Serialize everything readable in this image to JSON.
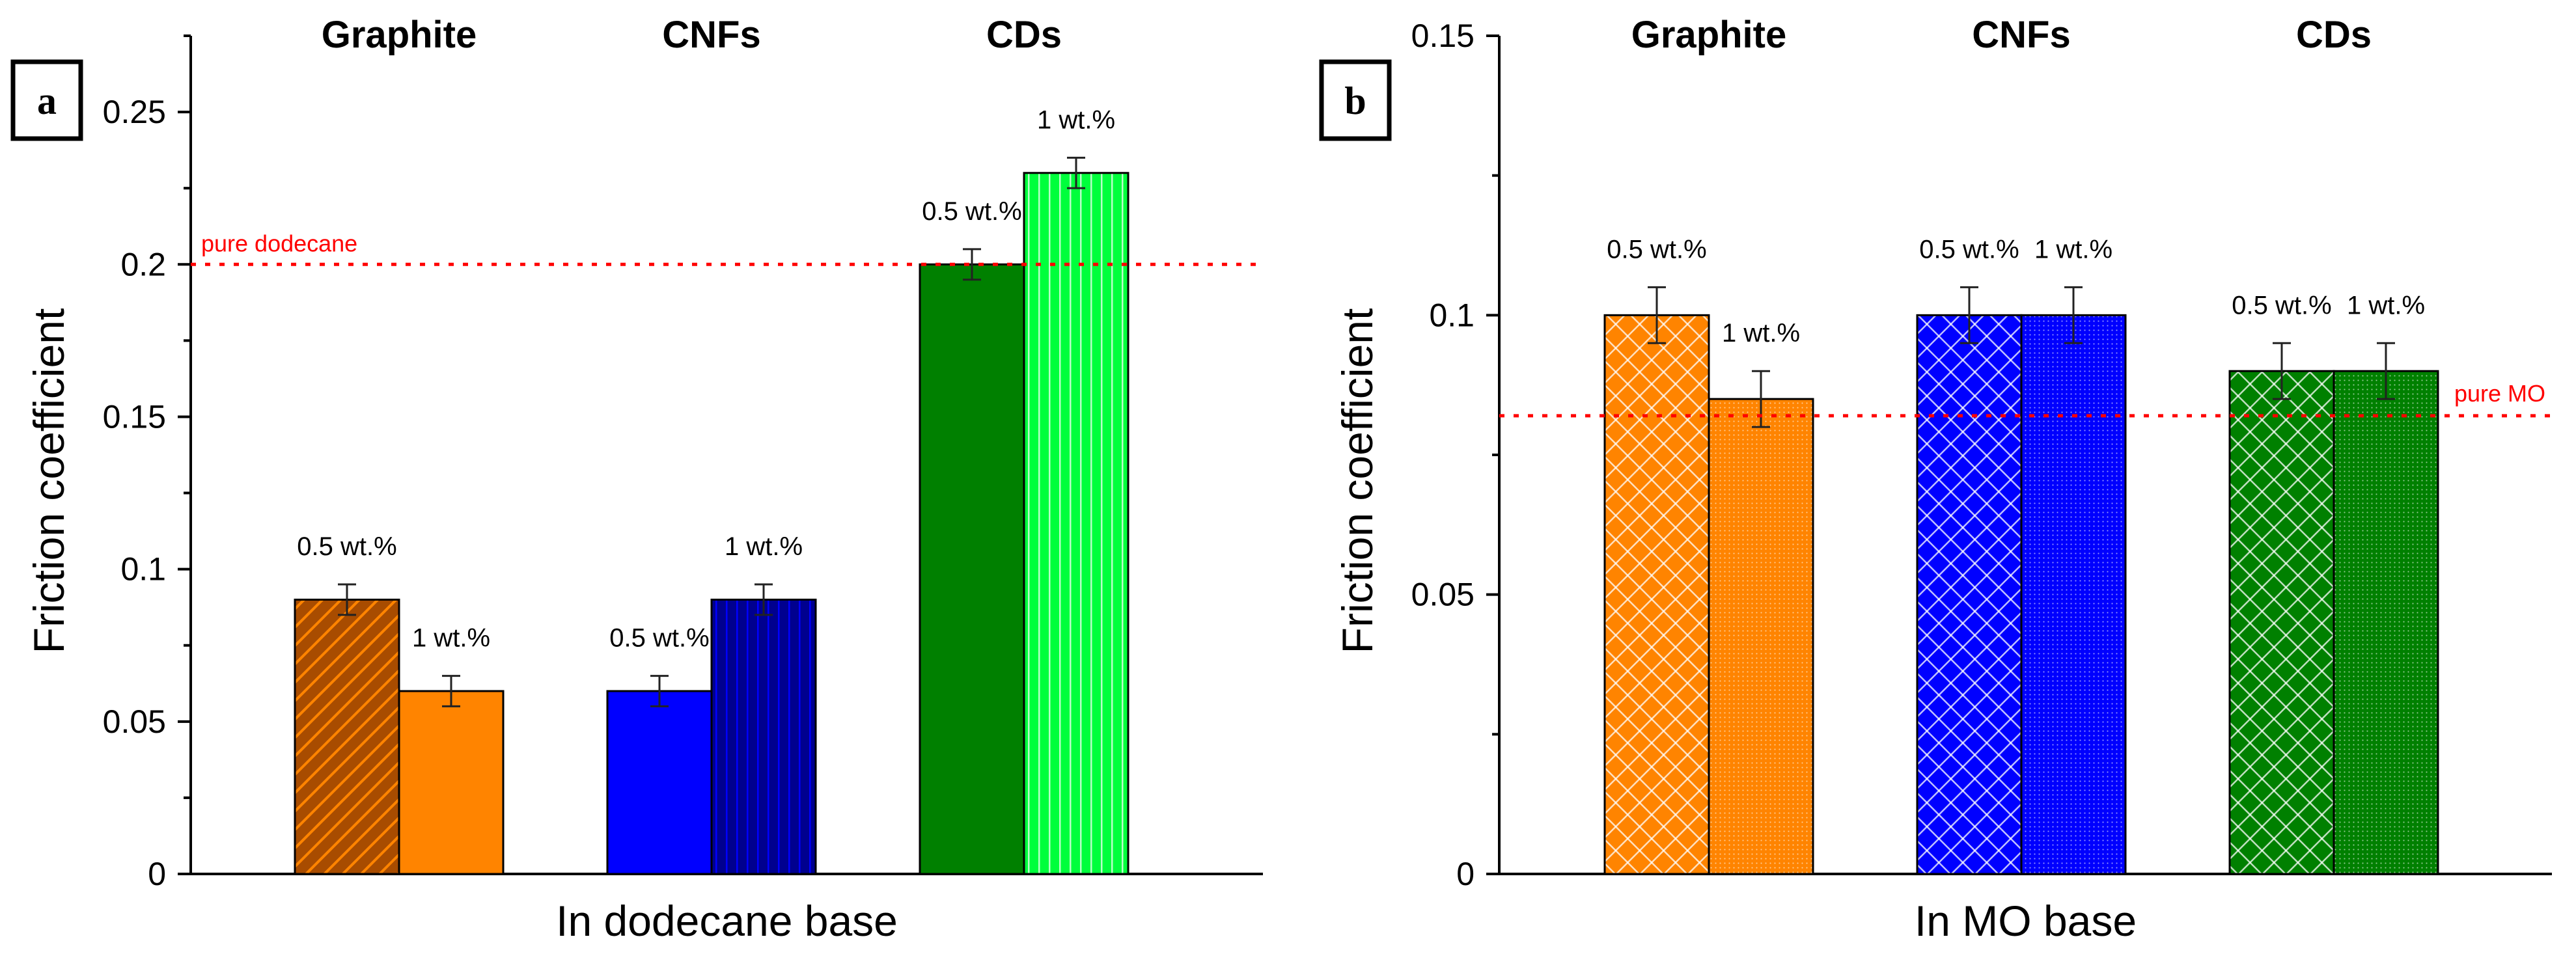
{
  "colors": {
    "graphite": "#ff8400",
    "graphite_dark": "#a84c00",
    "cnf": "#0000ff",
    "cnf_dark": "#00008f",
    "cd": "#008000",
    "cd_light": "#00ff3c",
    "reference": "#ff0000"
  },
  "chart_data": [
    {
      "type": "bar",
      "panel_label": "a",
      "groups": [
        "Graphite",
        "CNFs",
        "CDs"
      ],
      "series_labels": [
        "0.5 wt.%",
        "1 wt.%"
      ],
      "values": [
        [
          0.09,
          0.06
        ],
        [
          0.06,
          0.09
        ],
        [
          0.2,
          0.23
        ]
      ],
      "errors": [
        [
          0.005,
          0.005
        ],
        [
          0.005,
          0.005
        ],
        [
          0.005,
          0.005
        ]
      ],
      "fills": [
        [
          "graphite_dark_hatch",
          "graphite_solid"
        ],
        [
          "cnf_solid",
          "cnf_vertical"
        ],
        [
          "cd_solid",
          "cd_light_vertical"
        ]
      ],
      "xlabel": "In dodecane base",
      "ylabel": "Friction coefficient",
      "ylim": [
        0,
        0.275
      ],
      "yticks": [
        0,
        0.05,
        0.1,
        0.15,
        0.2,
        0.25
      ],
      "ytick_labels": [
        "0",
        "0.05",
        "0.1",
        "0.15",
        "0.2",
        "0.25"
      ],
      "reference": {
        "label": "pure dodecane",
        "value": 0.2
      }
    },
    {
      "type": "bar",
      "panel_label": "b",
      "groups": [
        "Graphite",
        "CNFs",
        "CDs"
      ],
      "series_labels": [
        "0.5 wt.%",
        "1 wt.%"
      ],
      "values": [
        [
          0.1,
          0.085
        ],
        [
          0.1,
          0.1
        ],
        [
          0.09,
          0.09
        ]
      ],
      "errors": [
        [
          0.005,
          0.005
        ],
        [
          0.005,
          0.005
        ],
        [
          0.005,
          0.005
        ]
      ],
      "fills": [
        [
          "graphite_cross",
          "graphite_dots"
        ],
        [
          "cnf_cross",
          "cnf_dots"
        ],
        [
          "cd_cross",
          "cd_dots"
        ]
      ],
      "xlabel": "In MO base",
      "ylabel": "Friction coefficient",
      "ylim": [
        0,
        0.15
      ],
      "yticks": [
        0,
        0.05,
        0.1,
        0.15
      ],
      "ytick_labels": [
        "0",
        "0.05",
        "0.1",
        "0.15"
      ],
      "reference": {
        "label": "pure MO",
        "value": 0.082
      }
    }
  ]
}
